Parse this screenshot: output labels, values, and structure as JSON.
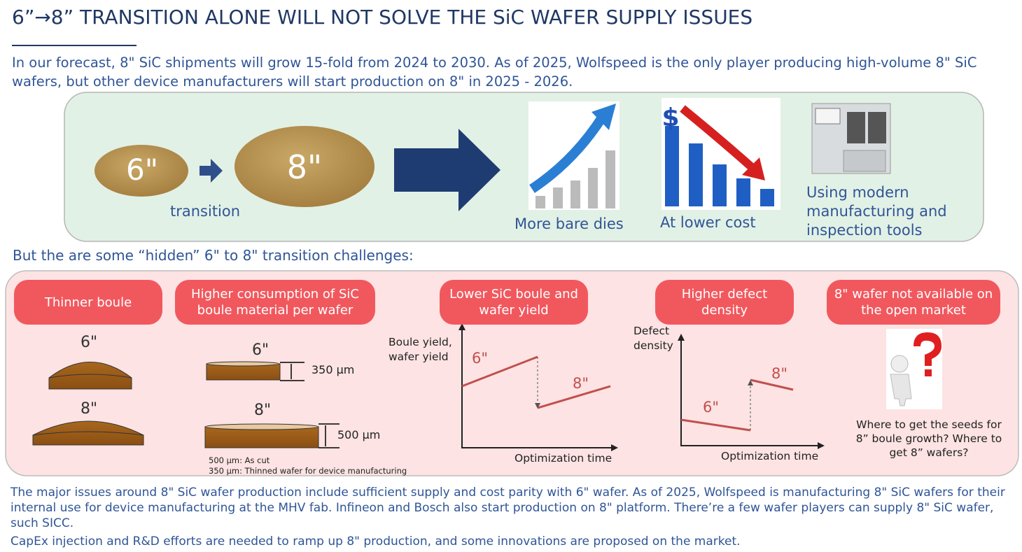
{
  "header": {
    "title": "6”→8” TRANSITION ALONE WILL NOT SOLVE THE SiC WAFER SUPPLY ISSUES",
    "intro": "In our forecast, 8\" SiC shipments will grow 15-fold from 2024 to 2030. As of 2025, Wolfspeed is the only player producing high-volume 8\" SiC wafers, but other device manufacturers will start production on 8\" in 2025 - 2026."
  },
  "transition": {
    "from": "6\"",
    "to": "8\"",
    "label": "transition",
    "currency": "$",
    "benefits": [
      "More bare dies",
      "At lower cost",
      "Using modern manufacturing and inspection tools"
    ]
  },
  "challenges_heading": "But the are some “hidden” 6\" to 8\" transition challenges:",
  "challenges": [
    {
      "title": "Thinner boule",
      "small": "6\"",
      "large": "8\""
    },
    {
      "title": "Higher consumption of SiC boule material per wafer",
      "small": "6\"",
      "small_thickness": "350 µm",
      "large": "8\"",
      "large_thickness": "500 µm",
      "notes": [
        "500 µm: As cut",
        "350 µm: Thinned wafer for device manufacturing"
      ]
    },
    {
      "title": "Lower SiC boule and wafer yield",
      "y_label": "Boule yield, wafer yield",
      "x_label": "Optimization time",
      "first": "6\"",
      "second": "8\""
    },
    {
      "title": "Higher defect density",
      "y_label": "Defect density",
      "x_label": "Optimization time",
      "first": "6\"",
      "second": "8\""
    },
    {
      "title": "8\" wafer not available on the open market",
      "caption": "Where to get the seeds for 8” boule growth? Where to get 8” wafers?"
    }
  ],
  "footer": [
    "The major issues around 8\" SiC wafer production include sufficient supply and cost parity with 6\" wafer. As of 2025, Wolfspeed is manufacturing 8\" SiC wafers for their internal use for device manufacturing at the MHV fab. Infineon and Bosch also start production on 8\" platform. There’re a few wafer players can supply 8\" SiC wafer, such SICC.",
    "CapEx injection and R&D efforts are needed to ramp up 8\" production, and some innovations are proposed on the market."
  ]
}
